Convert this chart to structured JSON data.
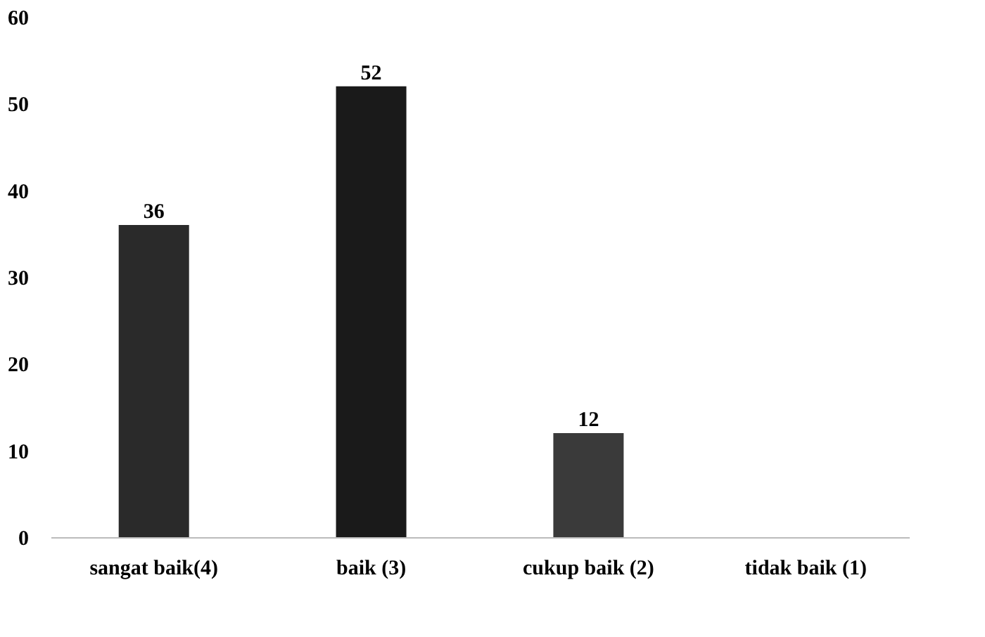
{
  "chart_data": {
    "type": "bar",
    "categories": [
      "sangat baik(4)",
      "baik (3)",
      "cukup baik (2)",
      "tidak baik (1)"
    ],
    "values": [
      36,
      52,
      12,
      0
    ],
    "colors": [
      "#2a2a2a",
      "#1a1a1a",
      "#3a3a3a",
      "#2a2a2a"
    ],
    "value_labels": [
      "36",
      "52",
      "12",
      null
    ],
    "ylim": [
      0,
      60
    ],
    "yticks": [
      0,
      10,
      20,
      30,
      40,
      50,
      60
    ],
    "grid": false
  }
}
